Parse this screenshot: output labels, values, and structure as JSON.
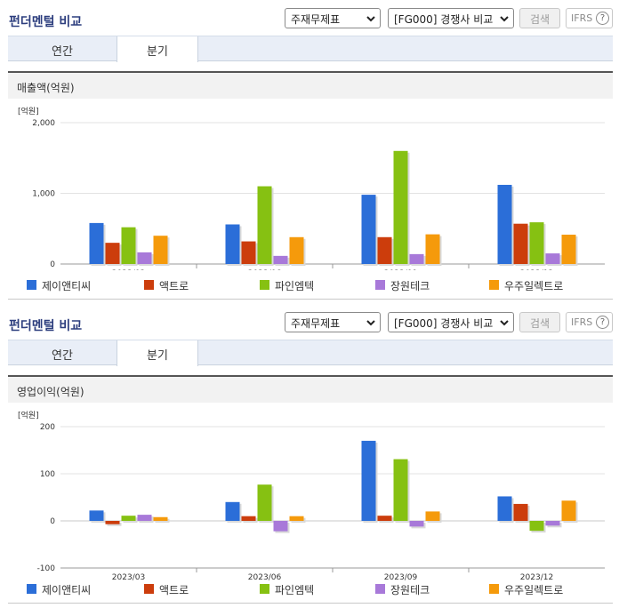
{
  "header": {
    "title": "펀더멘털 비교",
    "statement_select": "주재무제표",
    "compare_select": "[FG000] 경쟁사 비교",
    "search_label": "검색",
    "ifrs_label": "IFRS",
    "help_label": "?"
  },
  "tabs": [
    "연간",
    "분기"
  ],
  "active_tab": "분기",
  "colors": {
    "series": [
      "#2b6ed8",
      "#cc3d0c",
      "#86c112",
      "#a879d9",
      "#f59a0b"
    ],
    "grid": "#e3e3e3",
    "axis": "#999999"
  },
  "chart_data": [
    {
      "type": "bar",
      "title": "매출액(억원)",
      "unit": "[억원]",
      "categories": [
        "2023/03",
        "2023/06",
        "2023/09",
        "2023/12"
      ],
      "y_ticks": [
        "2,000",
        "1,000",
        "0"
      ],
      "ylim": [
        0,
        2000
      ],
      "series": [
        {
          "name": "제이앤티씨",
          "values": [
            580,
            560,
            980,
            1120
          ]
        },
        {
          "name": "액트로",
          "values": [
            300,
            320,
            380,
            570
          ]
        },
        {
          "name": "파인엠텍",
          "values": [
            520,
            1100,
            1600,
            590
          ]
        },
        {
          "name": "장원테크",
          "values": [
            165,
            115,
            140,
            150
          ]
        },
        {
          "name": "우주일렉트로",
          "values": [
            400,
            380,
            420,
            415
          ]
        }
      ],
      "legend_position": "bottom"
    },
    {
      "type": "bar",
      "title": "영업이익(억원)",
      "unit": "[억원]",
      "categories": [
        "2023/03",
        "2023/06",
        "2023/09",
        "2023/12"
      ],
      "y_ticks": [
        "200",
        "100",
        "0",
        "-100"
      ],
      "ylim": [
        -100,
        200
      ],
      "series": [
        {
          "name": "제이앤티씨",
          "values": [
            22,
            40,
            170,
            52
          ]
        },
        {
          "name": "액트로",
          "values": [
            -7,
            10,
            11,
            36
          ]
        },
        {
          "name": "파인엠텍",
          "values": [
            11,
            77,
            131,
            -21
          ]
        },
        {
          "name": "장원테크",
          "values": [
            13,
            -22,
            -12,
            -10
          ]
        },
        {
          "name": "우주일렉트로",
          "values": [
            8,
            10,
            20,
            43
          ]
        }
      ],
      "legend_position": "bottom"
    }
  ]
}
